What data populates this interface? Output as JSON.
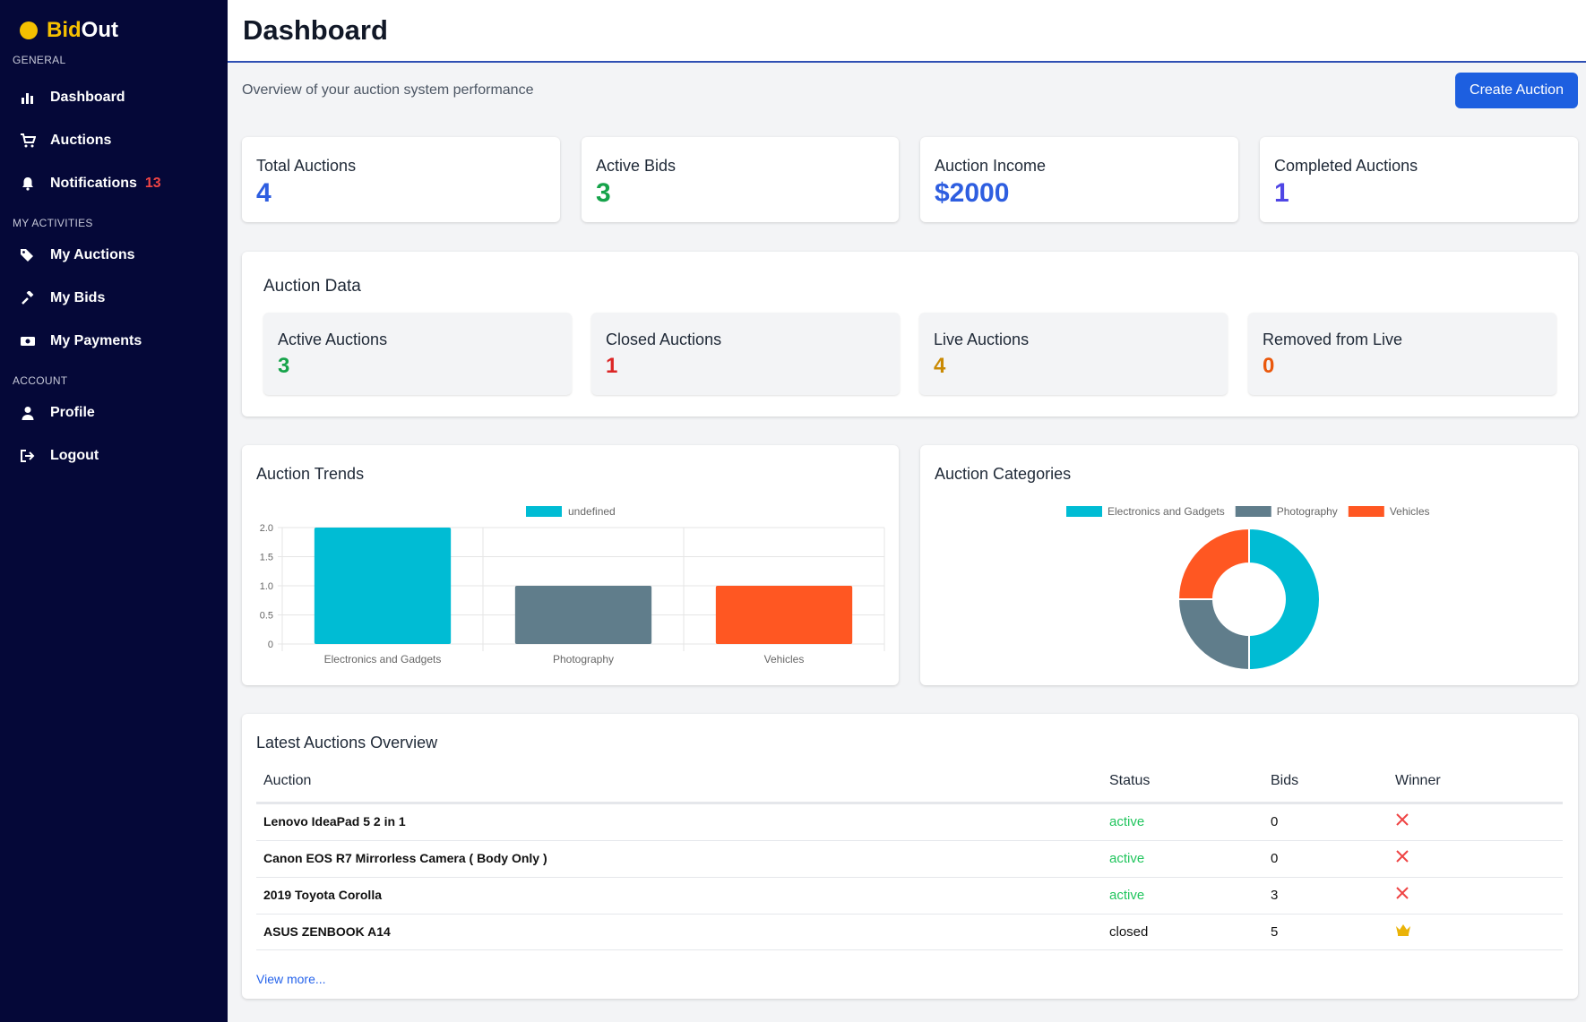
{
  "brand": {
    "part1": "Bid",
    "part2": "Out"
  },
  "sidebar": {
    "sections": [
      {
        "label": "GENERAL",
        "items": [
          {
            "label": "Dashboard",
            "icon": "bar-chart-icon"
          },
          {
            "label": "Auctions",
            "icon": "cart-icon"
          },
          {
            "label": "Notifications",
            "icon": "bell-icon",
            "badge": "13"
          }
        ]
      },
      {
        "label": "MY ACTIVITIES",
        "items": [
          {
            "label": "My Auctions",
            "icon": "tags-icon"
          },
          {
            "label": "My Bids",
            "icon": "gavel-icon"
          },
          {
            "label": "My Payments",
            "icon": "money-icon"
          }
        ]
      },
      {
        "label": "ACCOUNT",
        "items": [
          {
            "label": "Profile",
            "icon": "user-icon"
          },
          {
            "label": "Logout",
            "icon": "logout-icon"
          }
        ]
      }
    ]
  },
  "header": {
    "title": "Dashboard"
  },
  "subtitle": "Overview of your auction system performance",
  "create_button": "Create Auction",
  "stats": [
    {
      "label": "Total Auctions",
      "value": "4",
      "color": "#2e5ee0"
    },
    {
      "label": "Active Bids",
      "value": "3",
      "color": "#16a34a"
    },
    {
      "label": "Auction Income",
      "value": "$2000",
      "color": "#2e5ee0"
    },
    {
      "label": "Completed Auctions",
      "value": "1",
      "color": "#4f46e5"
    }
  ],
  "auction_data": {
    "title": "Auction Data",
    "items": [
      {
        "label": "Active Auctions",
        "value": "3",
        "color": "#16a34a"
      },
      {
        "label": "Closed Auctions",
        "value": "1",
        "color": "#dc2626"
      },
      {
        "label": "Live Auctions",
        "value": "4",
        "color": "#ca8a04"
      },
      {
        "label": "Removed from Live",
        "value": "0",
        "color": "#ea580c"
      }
    ]
  },
  "trends": {
    "title": "Auction Trends"
  },
  "categories_panel": {
    "title": "Auction Categories"
  },
  "chart_data": [
    {
      "type": "bar",
      "categories": [
        "Electronics and Gadgets",
        "Photography",
        "Vehicles"
      ],
      "values": [
        2,
        1,
        1
      ],
      "legend": "undefined",
      "legend_position": "top",
      "colors": [
        "#00bcd4",
        "#607d8b",
        "#ff5722"
      ],
      "ylim": [
        0,
        2
      ],
      "yticks": [
        "0",
        "0.5",
        "1.0",
        "1.5",
        "2.0"
      ],
      "grid": true
    },
    {
      "type": "pie",
      "categories": [
        "Electronics and Gadgets",
        "Photography",
        "Vehicles"
      ],
      "values": [
        2,
        1,
        1
      ],
      "colors": [
        "#00bcd4",
        "#607d8b",
        "#ff5722"
      ],
      "legend_position": "top"
    }
  ],
  "latest": {
    "title": "Latest Auctions Overview",
    "columns": [
      "Auction",
      "Status",
      "Bids",
      "Winner"
    ],
    "rows": [
      {
        "name": "Lenovo IdeaPad 5 2 in 1",
        "status": "active",
        "bids": "0",
        "winner": "x-icon"
      },
      {
        "name": "Canon EOS R7 Mirrorless Camera ( Body Only )",
        "status": "active",
        "bids": "0",
        "winner": "x-icon"
      },
      {
        "name": "2019 Toyota Corolla",
        "status": "active",
        "bids": "3",
        "winner": "x-icon"
      },
      {
        "name": "ASUS ZENBOOK A14",
        "status": "closed",
        "bids": "5",
        "winner": "crown-icon"
      }
    ],
    "view_more": "View more..."
  }
}
